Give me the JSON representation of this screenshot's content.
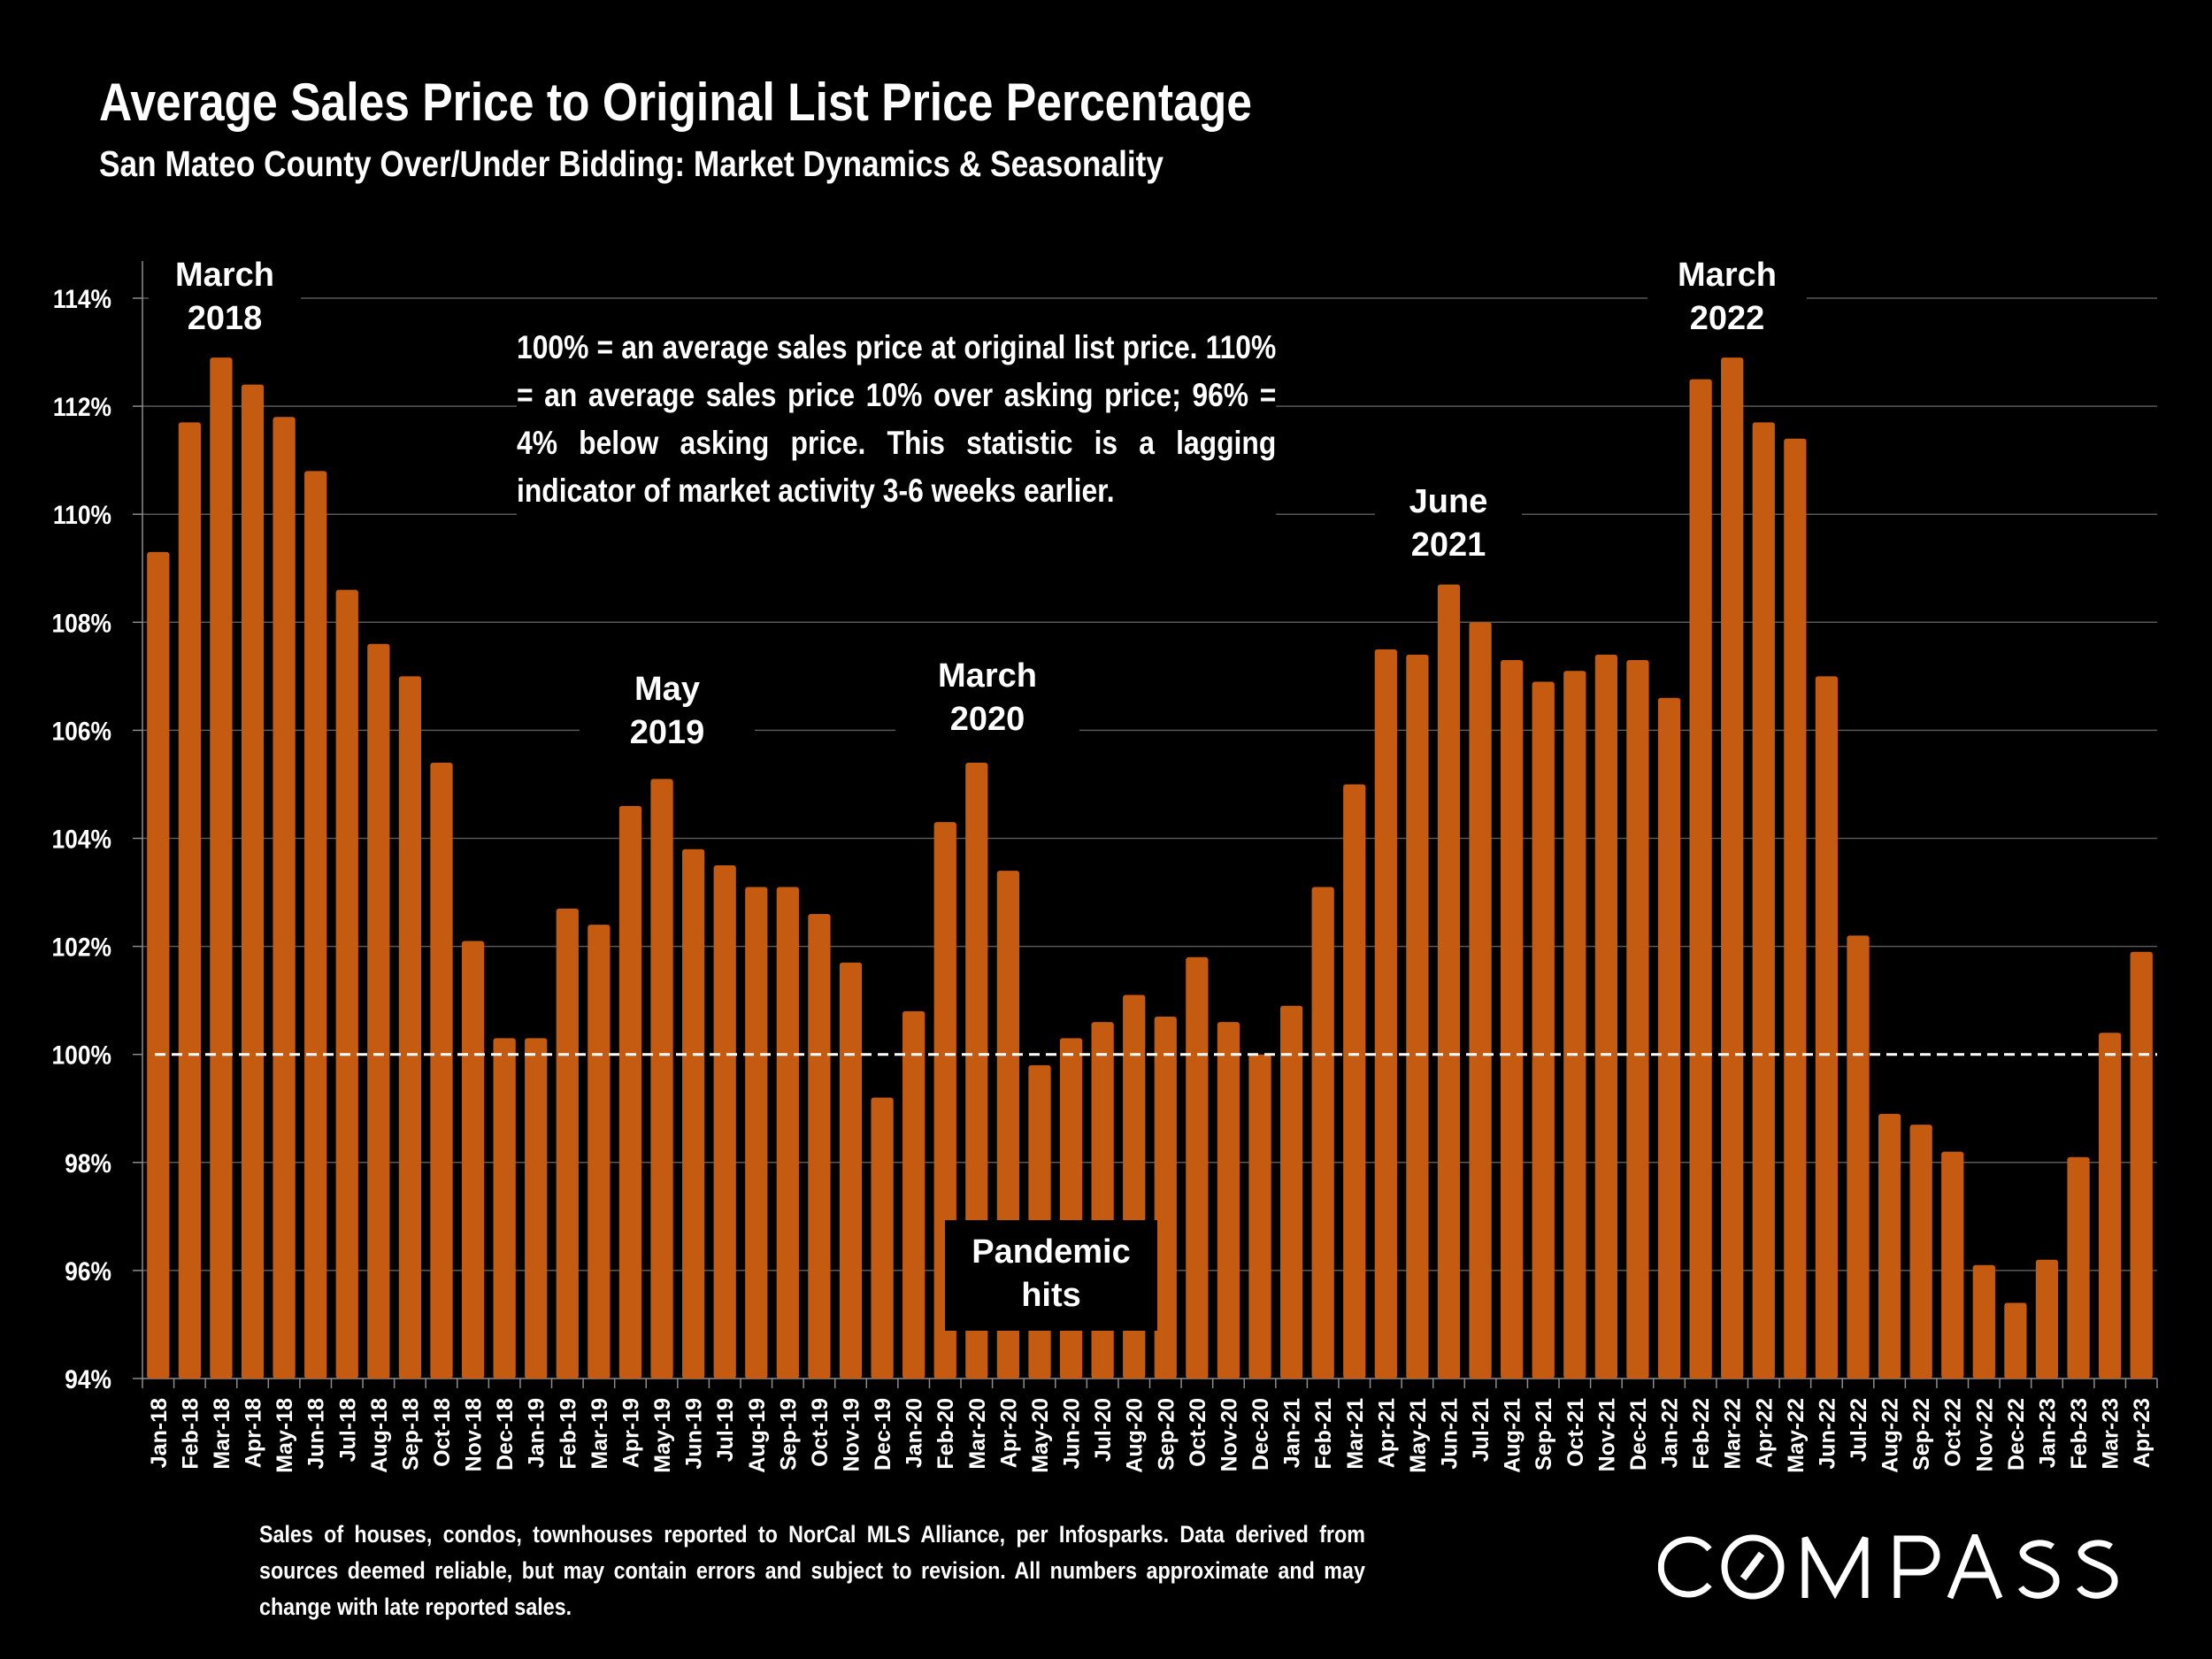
{
  "header": {
    "title": "Average Sales Price to Original List Price Percentage",
    "subtitle": "San Mateo County Over/Under Bidding: Market Dynamics & Seasonality"
  },
  "note": "100% = an average sales price at original list price. 110% = an average sales price 10% over asking price; 96% = 4% below asking price. This statistic is a lagging indicator of market activity 3-6 weeks earlier.",
  "annotations": [
    {
      "id": "march-2018",
      "line1": "March",
      "line2": "2018",
      "category": "Mar-18"
    },
    {
      "id": "may-2019",
      "line1": "May",
      "line2": "2019",
      "category": "May-19"
    },
    {
      "id": "march-2020",
      "line1": "March",
      "line2": "2020",
      "category": "Mar-20"
    },
    {
      "id": "pandemic",
      "line1": "Pandemic",
      "line2": "hits",
      "category": "Apr-20"
    },
    {
      "id": "june-2021",
      "line1": "June",
      "line2": "2021",
      "category": "Jun-21"
    },
    {
      "id": "march-2022",
      "line1": "March",
      "line2": "2022",
      "category": "Mar-22"
    }
  ],
  "footer": "Sales of houses, condos, townhouses reported to NorCal MLS Alliance, per Infosparks. Data derived from sources deemed reliable, but may contain errors and subject to revision. All numbers approximate and may change with late reported sales.",
  "brand": {
    "logo_text": "COMPASS"
  },
  "colors": {
    "bar": "#C55A11",
    "background": "#000000",
    "text": "#FFFFFF",
    "gridline": "#595959",
    "reference_line": "#FFFFFF"
  },
  "chart_data": {
    "type": "bar",
    "title": "Average Sales Price to Original List Price Percentage",
    "subtitle": "San Mateo County Over/Under Bidding: Market Dynamics & Seasonality",
    "xlabel": "",
    "ylabel": "",
    "ylim": [
      94,
      114
    ],
    "yticks": [
      94,
      96,
      98,
      100,
      102,
      104,
      106,
      108,
      110,
      112,
      114
    ],
    "ytick_labels": [
      "94%",
      "96%",
      "98%",
      "100%",
      "102%",
      "104%",
      "106%",
      "108%",
      "110%",
      "112%",
      "114%"
    ],
    "grid": true,
    "reference_line": {
      "value": 100,
      "style": "dashed"
    },
    "legend": "none",
    "categories": [
      "Jan-18",
      "Feb-18",
      "Mar-18",
      "Apr-18",
      "May-18",
      "Jun-18",
      "Jul-18",
      "Aug-18",
      "Sep-18",
      "Oct-18",
      "Nov-18",
      "Dec-18",
      "Jan-19",
      "Feb-19",
      "Mar-19",
      "Apr-19",
      "May-19",
      "Jun-19",
      "Jul-19",
      "Aug-19",
      "Sep-19",
      "Oct-19",
      "Nov-19",
      "Dec-19",
      "Jan-20",
      "Feb-20",
      "Mar-20",
      "Apr-20",
      "May-20",
      "Jun-20",
      "Jul-20",
      "Aug-20",
      "Sep-20",
      "Oct-20",
      "Nov-20",
      "Dec-20",
      "Jan-21",
      "Feb-21",
      "Mar-21",
      "Apr-21",
      "May-21",
      "Jun-21",
      "Jul-21",
      "Aug-21",
      "Sep-21",
      "Oct-21",
      "Nov-21",
      "Dec-21",
      "Jan-22",
      "Feb-22",
      "Mar-22",
      "Apr-22",
      "May-22",
      "Jun-22",
      "Jul-22",
      "Aug-22",
      "Sep-22",
      "Oct-22",
      "Nov-22",
      "Dec-22",
      "Jan-23",
      "Feb-23",
      "Mar-23",
      "Apr-23"
    ],
    "values": [
      109.3,
      111.7,
      112.9,
      112.4,
      111.8,
      110.8,
      108.6,
      107.6,
      107.0,
      105.4,
      102.1,
      100.3,
      100.3,
      102.7,
      102.4,
      104.6,
      105.1,
      103.8,
      103.5,
      103.1,
      103.1,
      102.6,
      101.7,
      99.2,
      100.8,
      104.3,
      105.4,
      103.4,
      99.8,
      100.3,
      100.6,
      101.1,
      100.7,
      101.8,
      100.6,
      100.0,
      100.9,
      103.1,
      105.0,
      107.5,
      107.4,
      108.7,
      108.0,
      107.3,
      106.9,
      107.1,
      107.4,
      107.3,
      106.6,
      112.5,
      112.9,
      111.7,
      111.4,
      107.0,
      102.2,
      98.9,
      98.7,
      98.2,
      96.1,
      95.4,
      96.2,
      98.1,
      100.4,
      101.9
    ]
  }
}
